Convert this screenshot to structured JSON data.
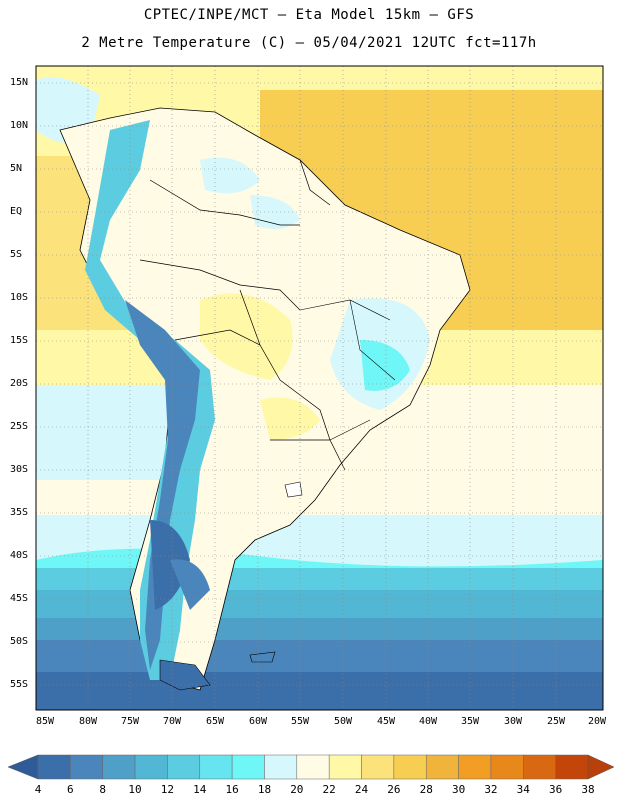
{
  "header": {
    "line1": "CPTEC/INPE/MCT –  Eta Model 15km – GFS",
    "line2": "2 Metre Temperature (C) – 05/04/2021 12UTC fct=117h"
  },
  "map": {
    "lat_labels": [
      "15N",
      "10N",
      "5N",
      "EQ",
      "5S",
      "10S",
      "15S",
      "20S",
      "25S",
      "30S",
      "35S",
      "40S",
      "45S",
      "50S",
      "55S"
    ],
    "lon_labels": [
      "85W",
      "80W",
      "75W",
      "70W",
      "65W",
      "60W",
      "55W",
      "50W",
      "45W",
      "40W",
      "35W",
      "30W",
      "25W",
      "20W"
    ]
  },
  "colorbar": {
    "labels": [
      "4",
      "6",
      "8",
      "10",
      "12",
      "14",
      "16",
      "18",
      "20",
      "22",
      "24",
      "26",
      "28",
      "30",
      "32",
      "34",
      "36",
      "38"
    ],
    "colors": [
      "#3a6fa9",
      "#4a86bc",
      "#4fa0c8",
      "#52b7d4",
      "#5ccde0",
      "#66e4ef",
      "#6ff7f7",
      "#d6f7fb",
      "#fffbe5",
      "#fff8a6",
      "#fbe27a",
      "#f7cd52",
      "#f0b43c",
      "#f29d24",
      "#e8881a",
      "#d86912",
      "#c4450a"
    ],
    "low_color": "#2f5c98",
    "high_color": "#b8400a"
  }
}
